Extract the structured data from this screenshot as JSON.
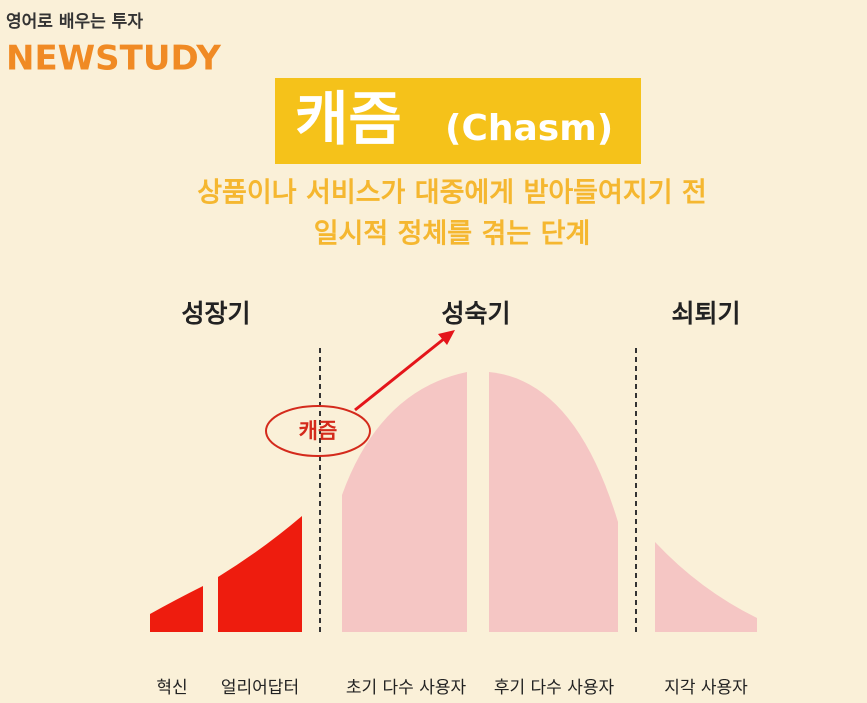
{
  "header": {
    "series_title": "영어로 배우는 투자",
    "brand": "NEWSTUDY"
  },
  "title": {
    "main": "캐즘",
    "english": "(Chasm)"
  },
  "subtitle": {
    "lines": [
      "상품이나 서비스가 대중에게 받아들여지기 전",
      "일시적 정체를 겪는 단계"
    ]
  },
  "phases": [
    "성장기",
    "성숙기",
    "쇠퇴기"
  ],
  "callout": "캐즘",
  "segments": [
    "혁신",
    "얼리어답터",
    "초기 다수 사용자",
    "후기 다수 사용자",
    "지각 사용자"
  ]
}
